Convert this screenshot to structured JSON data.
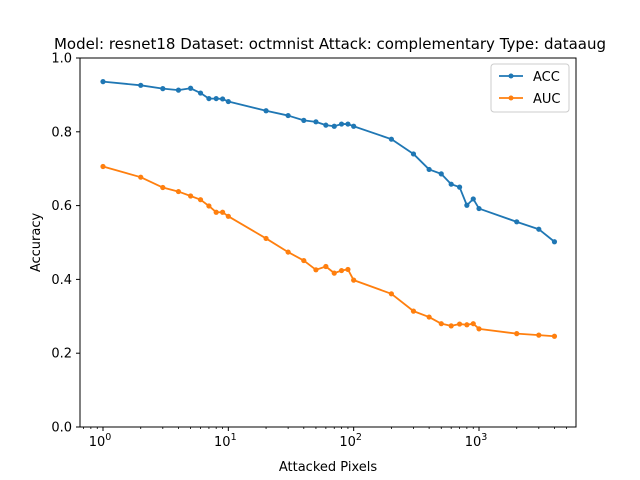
{
  "chart_data": {
    "type": "line",
    "title": "Model: resnet18 Dataset: octmnist Attack: complementary Type: dataaug",
    "xlabel": "Attacked Pixels",
    "ylabel": "Accuracy",
    "xscale": "log",
    "ylim": [
      0.0,
      1.0
    ],
    "yticks": [
      0.0,
      0.2,
      0.4,
      0.6,
      0.8,
      1.0
    ],
    "yticklabels": [
      "0.0",
      "0.2",
      "0.4",
      "0.6",
      "0.8",
      "1.0"
    ],
    "xticks": [
      1,
      10,
      100,
      1000
    ],
    "xticklabels": [
      {
        "base": "10",
        "exp": "0"
      },
      {
        "base": "10",
        "exp": "1"
      },
      {
        "base": "10",
        "exp": "2"
      },
      {
        "base": "10",
        "exp": "3"
      }
    ],
    "legend_position": "top-right",
    "grid": false,
    "series": [
      {
        "name": "ACC",
        "color": "#1f77b4",
        "points": [
          [
            1,
            0.936
          ],
          [
            2,
            0.926
          ],
          [
            3,
            0.917
          ],
          [
            4,
            0.913
          ],
          [
            5,
            0.918
          ],
          [
            6,
            0.905
          ],
          [
            7,
            0.89
          ],
          [
            8,
            0.89
          ],
          [
            9,
            0.889
          ],
          [
            10,
            0.882
          ],
          [
            20,
            0.857
          ],
          [
            30,
            0.844
          ],
          [
            40,
            0.831
          ],
          [
            50,
            0.827
          ],
          [
            60,
            0.818
          ],
          [
            70,
            0.815
          ],
          [
            80,
            0.821
          ],
          [
            90,
            0.821
          ],
          [
            100,
            0.815
          ],
          [
            200,
            0.78
          ],
          [
            300,
            0.74
          ],
          [
            400,
            0.698
          ],
          [
            500,
            0.686
          ],
          [
            600,
            0.658
          ],
          [
            700,
            0.65
          ],
          [
            800,
            0.601
          ],
          [
            900,
            0.618
          ],
          [
            1000,
            0.592
          ],
          [
            2000,
            0.556
          ],
          [
            3000,
            0.536
          ],
          [
            4000,
            0.502
          ]
        ]
      },
      {
        "name": "AUC",
        "color": "#ff7f0e",
        "points": [
          [
            1,
            0.706
          ],
          [
            2,
            0.677
          ],
          [
            3,
            0.649
          ],
          [
            4,
            0.638
          ],
          [
            5,
            0.626
          ],
          [
            6,
            0.616
          ],
          [
            7,
            0.599
          ],
          [
            8,
            0.582
          ],
          [
            9,
            0.582
          ],
          [
            10,
            0.571
          ],
          [
            20,
            0.511
          ],
          [
            30,
            0.474
          ],
          [
            40,
            0.451
          ],
          [
            50,
            0.426
          ],
          [
            60,
            0.435
          ],
          [
            70,
            0.417
          ],
          [
            80,
            0.424
          ],
          [
            90,
            0.427
          ],
          [
            100,
            0.398
          ],
          [
            200,
            0.361
          ],
          [
            300,
            0.314
          ],
          [
            400,
            0.298
          ],
          [
            500,
            0.28
          ],
          [
            600,
            0.274
          ],
          [
            700,
            0.279
          ],
          [
            800,
            0.277
          ],
          [
            900,
            0.28
          ],
          [
            1000,
            0.266
          ],
          [
            2000,
            0.253
          ],
          [
            3000,
            0.249
          ],
          [
            4000,
            0.246
          ]
        ]
      }
    ]
  }
}
